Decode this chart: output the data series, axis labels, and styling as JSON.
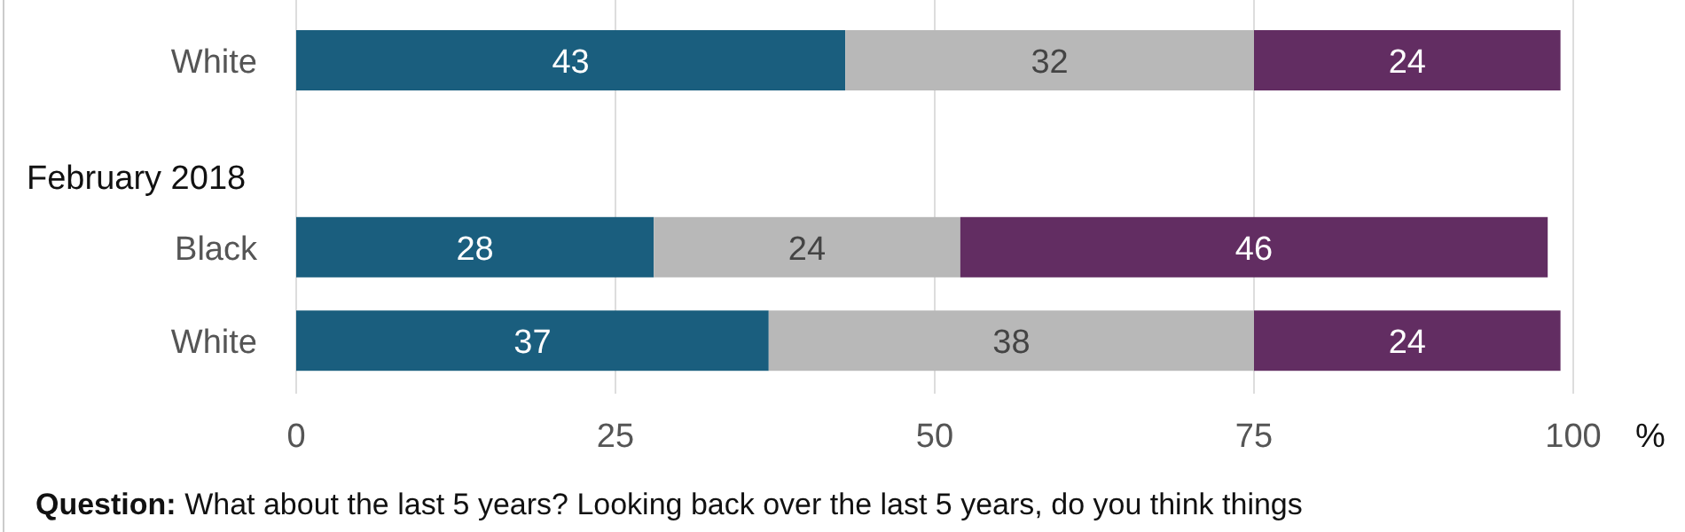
{
  "chart_data": {
    "type": "bar",
    "orientation": "horizontal",
    "stacked": true,
    "categories": [
      "White",
      null,
      "Black",
      "White"
    ],
    "series": [
      {
        "color": "#1a5e7e",
        "values": [
          43,
          null,
          28,
          37
        ]
      },
      {
        "color": "#b8b8b8",
        "values": [
          32,
          null,
          24,
          38
        ]
      },
      {
        "color": "#622d62",
        "values": [
          24,
          null,
          46,
          24
        ]
      }
    ],
    "xlim": [
      0,
      100
    ],
    "xticks": [
      0,
      25,
      50,
      75,
      100
    ],
    "xlabel": "%",
    "grid": "x",
    "data_labels": true,
    "annotations": [
      "February 2018",
      "Question: What about the last 5 years? Looking back over the last 5 years, do you think things"
    ]
  }
}
